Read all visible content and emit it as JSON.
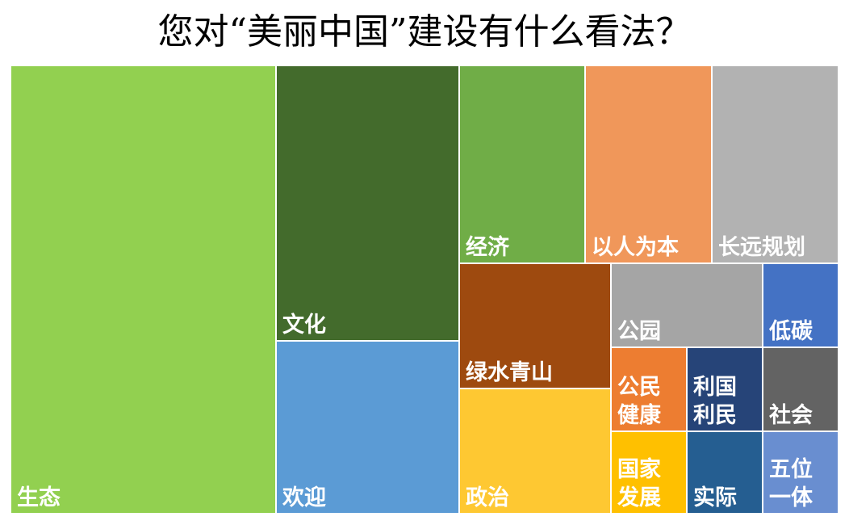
{
  "chart_data": {
    "type": "treemap",
    "title": "您对“美丽中国”建设有什么看法？",
    "items": [
      {
        "name": "生态",
        "lines": [
          "生态"
        ],
        "value": 190,
        "color": "#92d050"
      },
      {
        "name": "文化",
        "lines": [
          "文化"
        ],
        "value": 69,
        "color": "#436b2c"
      },
      {
        "name": "欢迎",
        "lines": [
          "欢迎"
        ],
        "value": 43,
        "color": "#5b9bd5"
      },
      {
        "name": "经济",
        "lines": [
          "经济"
        ],
        "value": 34,
        "color": "#70ad47"
      },
      {
        "name": "以人为本",
        "lines": [
          "以人为本"
        ],
        "value": 34,
        "color": "#f0975a"
      },
      {
        "name": "长远规划",
        "lines": [
          "长远规划"
        ],
        "value": 34,
        "color": "#b2b2b2"
      },
      {
        "name": "绿水青山",
        "lines": [
          "绿水青山"
        ],
        "value": 24,
        "color": "#9e4a0f"
      },
      {
        "name": "政治",
        "lines": [
          "政治"
        ],
        "value": 24,
        "color": "#fec832"
      },
      {
        "name": "公园",
        "lines": [
          "公园"
        ],
        "value": 13,
        "color": "#a5a5a5"
      },
      {
        "name": "低碳",
        "lines": [
          "低碳"
        ],
        "value": 7,
        "color": "#4472c4"
      },
      {
        "name": "公民健康",
        "lines": [
          "公民",
          "健康"
        ],
        "value": 7,
        "color": "#ed7d31"
      },
      {
        "name": "利国利民",
        "lines": [
          "利国",
          "利民"
        ],
        "value": 7,
        "color": "#264478"
      },
      {
        "name": "社会",
        "lines": [
          "社会"
        ],
        "value": 7,
        "color": "#636363"
      },
      {
        "name": "国家发展",
        "lines": [
          "国家",
          "发展"
        ],
        "value": 7,
        "color": "#ffc000"
      },
      {
        "name": "实际",
        "lines": [
          "实际"
        ],
        "value": 7,
        "color": "#255e91"
      },
      {
        "name": "五位一体",
        "lines": [
          "五位",
          "一体"
        ],
        "value": 7,
        "color": "#698ed0"
      }
    ]
  }
}
